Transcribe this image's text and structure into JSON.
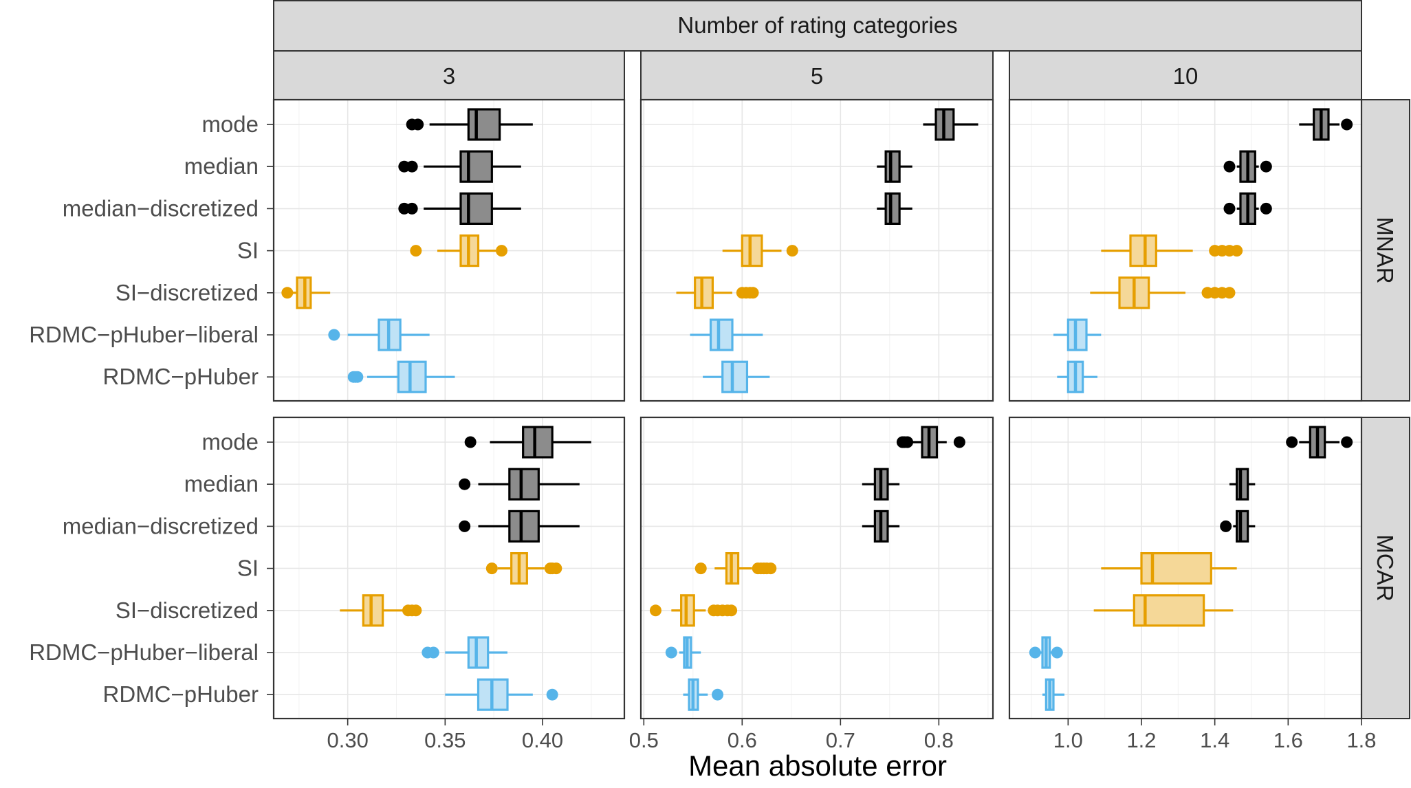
{
  "chart_data": {
    "type": "boxplot",
    "facet_title": "Number of rating categories",
    "xlabel": "Mean absolute error",
    "categories": [
      "mode",
      "median",
      "median−discretized",
      "SI",
      "SI−discretized",
      "RDMC−pHuber−liberal",
      "RDMC−pHuber"
    ],
    "colors": {
      "mode": "#000000",
      "median": "#000000",
      "median−discretized": "#000000",
      "SI": "#E69F00",
      "SI−discretized": "#E69F00",
      "RDMC−pHuber−liberal": "#56B4E9",
      "RDMC−pHuber": "#56B4E9"
    },
    "fills": {
      "mode": "#8c8c8c",
      "median": "#8c8c8c",
      "median−discretized": "#8c8c8c",
      "SI": "#f5d898",
      "SI−discretized": "#f5d898",
      "RDMC−pHuber−liberal": "#bfe2f6",
      "RDMC−pHuber": "#bfe2f6"
    },
    "columns": [
      {
        "label": "3",
        "xlim": [
          0.262,
          0.442
        ],
        "ticks": [
          0.3,
          0.35,
          0.4
        ],
        "tick_labels": [
          "0.30",
          "0.35",
          "0.40"
        ]
      },
      {
        "label": "5",
        "xlim": [
          0.497,
          0.855
        ],
        "ticks": [
          0.5,
          0.6,
          0.7,
          0.8
        ],
        "tick_labels": [
          "0.5",
          "0.6",
          "0.7",
          "0.8"
        ]
      },
      {
        "label": "10",
        "xlim": [
          0.84,
          1.8
        ],
        "ticks": [
          1.0,
          1.2,
          1.4,
          1.6,
          1.8
        ],
        "tick_labels": [
          "1.0",
          "1.2",
          "1.4",
          "1.6",
          "1.8"
        ]
      }
    ],
    "rows": [
      {
        "label": "MNAR",
        "panels": [
          [
            {
              "cat": "mode",
              "stats": [
                0.342,
                0.362,
                0.366,
                0.378,
                0.395
              ],
              "outliers": [
                0.333,
                0.336
              ]
            },
            {
              "cat": "median",
              "stats": [
                0.339,
                0.358,
                0.362,
                0.374,
                0.389
              ],
              "outliers": [
                0.329,
                0.333
              ]
            },
            {
              "cat": "median−discretized",
              "stats": [
                0.339,
                0.358,
                0.362,
                0.374,
                0.389
              ],
              "outliers": [
                0.329,
                0.333
              ]
            },
            {
              "cat": "SI",
              "stats": [
                0.346,
                0.358,
                0.362,
                0.367,
                0.376
              ],
              "outliers": [
                0.335,
                0.379
              ]
            },
            {
              "cat": "SI−discretized",
              "stats": [
                0.27,
                0.274,
                0.278,
                0.281,
                0.291
              ],
              "outliers": [
                0.269
              ]
            },
            {
              "cat": "RDMC−pHuber−liberal",
              "stats": [
                0.3,
                0.316,
                0.321,
                0.327,
                0.342
              ],
              "outliers": [
                0.293
              ]
            },
            {
              "cat": "RDMC−pHuber",
              "stats": [
                0.31,
                0.326,
                0.332,
                0.34,
                0.355
              ],
              "outliers": [
                0.303,
                0.304,
                0.305
              ]
            }
          ],
          [
            {
              "cat": "mode",
              "stats": [
                0.784,
                0.797,
                0.805,
                0.815,
                0.84
              ],
              "outliers": []
            },
            {
              "cat": "median",
              "stats": [
                0.737,
                0.746,
                0.751,
                0.76,
                0.773
              ],
              "outliers": []
            },
            {
              "cat": "median−discretized",
              "stats": [
                0.737,
                0.746,
                0.751,
                0.76,
                0.773
              ],
              "outliers": []
            },
            {
              "cat": "SI",
              "stats": [
                0.58,
                0.6,
                0.608,
                0.62,
                0.64
              ],
              "outliers": [
                0.651
              ]
            },
            {
              "cat": "SI−discretized",
              "stats": [
                0.533,
                0.552,
                0.559,
                0.57,
                0.59
              ],
              "outliers": [
                0.6,
                0.604,
                0.608,
                0.611
              ]
            },
            {
              "cat": "RDMC−pHuber−liberal",
              "stats": [
                0.547,
                0.568,
                0.576,
                0.59,
                0.621
              ],
              "outliers": []
            },
            {
              "cat": "RDMC−pHuber",
              "stats": [
                0.56,
                0.58,
                0.59,
                0.605,
                0.628
              ],
              "outliers": []
            }
          ],
          [
            {
              "cat": "mode",
              "stats": [
                1.63,
                1.67,
                1.69,
                1.71,
                1.74
              ],
              "outliers": [
                1.76
              ]
            },
            {
              "cat": "median",
              "stats": [
                1.46,
                1.47,
                1.49,
                1.51,
                1.52
              ],
              "outliers": [
                1.44,
                1.54
              ]
            },
            {
              "cat": "median−discretized",
              "stats": [
                1.46,
                1.47,
                1.49,
                1.51,
                1.52
              ],
              "outliers": [
                1.44,
                1.54
              ]
            },
            {
              "cat": "SI",
              "stats": [
                1.09,
                1.17,
                1.21,
                1.24,
                1.34
              ],
              "outliers": [
                1.4,
                1.42,
                1.44,
                1.46
              ]
            },
            {
              "cat": "SI−discretized",
              "stats": [
                1.06,
                1.14,
                1.18,
                1.22,
                1.32
              ],
              "outliers": [
                1.38,
                1.4,
                1.42,
                1.44
              ]
            },
            {
              "cat": "RDMC−pHuber−liberal",
              "stats": [
                0.96,
                1.0,
                1.02,
                1.05,
                1.09
              ],
              "outliers": []
            },
            {
              "cat": "RDMC−pHuber",
              "stats": [
                0.97,
                1.0,
                1.02,
                1.04,
                1.08
              ],
              "outliers": []
            }
          ]
        ]
      },
      {
        "label": "MCAR",
        "panels": [
          [
            {
              "cat": "mode",
              "stats": [
                0.373,
                0.39,
                0.396,
                0.405,
                0.425
              ],
              "outliers": [
                0.363
              ]
            },
            {
              "cat": "median",
              "stats": [
                0.367,
                0.383,
                0.389,
                0.398,
                0.419
              ],
              "outliers": [
                0.36
              ]
            },
            {
              "cat": "median−discretized",
              "stats": [
                0.367,
                0.383,
                0.389,
                0.398,
                0.419
              ],
              "outliers": [
                0.36
              ]
            },
            {
              "cat": "SI",
              "stats": [
                0.377,
                0.384,
                0.388,
                0.392,
                0.401
              ],
              "outliers": [
                0.374,
                0.404,
                0.405,
                0.407
              ]
            },
            {
              "cat": "SI−discretized",
              "stats": [
                0.296,
                0.308,
                0.312,
                0.318,
                0.33
              ],
              "outliers": [
                0.331,
                0.333,
                0.335
              ]
            },
            {
              "cat": "RDMC−pHuber−liberal",
              "stats": [
                0.35,
                0.362,
                0.366,
                0.372,
                0.382
              ],
              "outliers": [
                0.341,
                0.344
              ]
            },
            {
              "cat": "RDMC−pHuber",
              "stats": [
                0.35,
                0.367,
                0.374,
                0.382,
                0.395
              ],
              "outliers": [
                0.405
              ]
            }
          ],
          [
            {
              "cat": "mode",
              "stats": [
                0.772,
                0.783,
                0.79,
                0.798,
                0.808
              ],
              "outliers": [
                0.763,
                0.765,
                0.768,
                0.821
              ]
            },
            {
              "cat": "median",
              "stats": [
                0.722,
                0.735,
                0.741,
                0.748,
                0.76
              ],
              "outliers": []
            },
            {
              "cat": "median−discretized",
              "stats": [
                0.722,
                0.735,
                0.741,
                0.748,
                0.76
              ],
              "outliers": []
            },
            {
              "cat": "SI",
              "stats": [
                0.572,
                0.584,
                0.589,
                0.596,
                0.61
              ],
              "outliers": [
                0.558,
                0.616,
                0.619,
                0.622,
                0.625,
                0.629
              ]
            },
            {
              "cat": "SI−discretized",
              "stats": [
                0.528,
                0.538,
                0.543,
                0.551,
                0.563
              ],
              "outliers": [
                0.512,
                0.571,
                0.575,
                0.58,
                0.585,
                0.589
              ]
            },
            {
              "cat": "RDMC−pHuber−liberal",
              "stats": [
                0.536,
                0.541,
                0.544,
                0.548,
                0.558
              ],
              "outliers": [
                0.528
              ]
            },
            {
              "cat": "RDMC−pHuber",
              "stats": [
                0.54,
                0.546,
                0.55,
                0.555,
                0.565
              ],
              "outliers": [
                0.575
              ]
            }
          ],
          [
            {
              "cat": "mode",
              "stats": [
                1.63,
                1.66,
                1.68,
                1.7,
                1.74
              ],
              "outliers": [
                1.61,
                1.76
              ]
            },
            {
              "cat": "median",
              "stats": [
                1.44,
                1.46,
                1.47,
                1.49,
                1.51
              ],
              "outliers": []
            },
            {
              "cat": "median−discretized",
              "stats": [
                1.45,
                1.46,
                1.47,
                1.49,
                1.51
              ],
              "outliers": [
                1.43
              ]
            },
            {
              "cat": "SI",
              "stats": [
                1.09,
                1.2,
                1.23,
                1.39,
                1.46
              ],
              "outliers": []
            },
            {
              "cat": "SI−discretized",
              "stats": [
                1.07,
                1.18,
                1.21,
                1.37,
                1.45
              ],
              "outliers": []
            },
            {
              "cat": "RDMC−pHuber−liberal",
              "stats": [
                0.92,
                0.93,
                0.94,
                0.95,
                0.97
              ],
              "outliers": [
                0.91,
                0.97
              ]
            },
            {
              "cat": "RDMC−pHuber",
              "stats": [
                0.93,
                0.94,
                0.95,
                0.96,
                0.99
              ],
              "outliers": []
            }
          ]
        ]
      }
    ]
  }
}
